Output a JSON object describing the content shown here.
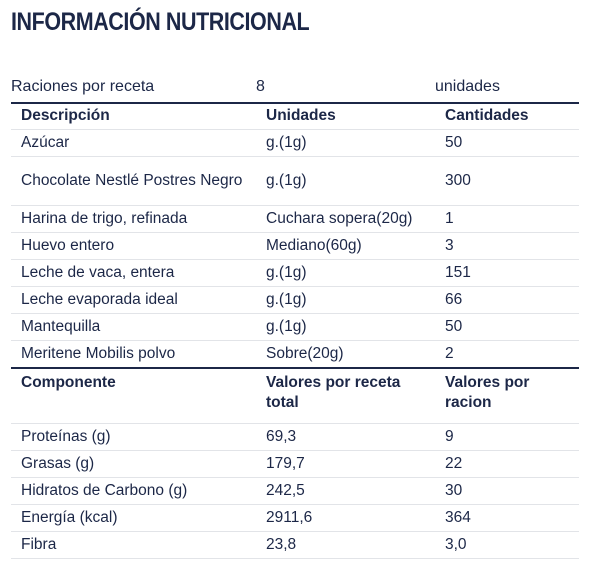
{
  "title": "INFORMACIÓN NUTRICIONAL",
  "servings": {
    "label": "Raciones por receta",
    "value": "8",
    "unit": "unidades"
  },
  "ingredients": {
    "headers": [
      "Descripción",
      "Unidades",
      "Cantidades"
    ],
    "rows": [
      [
        "Azúcar",
        "g.(1g)",
        "50"
      ],
      [
        "Chocolate Nestlé Postres Negro",
        "g.(1g)",
        "300"
      ],
      [
        "Harina de trigo, refinada",
        "Cuchara sopera(20g)",
        "1"
      ],
      [
        "Huevo entero",
        "Mediano(60g)",
        "3"
      ],
      [
        "Leche de vaca, entera",
        "g.(1g)",
        "151"
      ],
      [
        "Leche evaporada ideal",
        "g.(1g)",
        "66"
      ],
      [
        "Mantequilla",
        "g.(1g)",
        "50"
      ],
      [
        "Meritene Mobilis polvo",
        "Sobre(20g)",
        "2"
      ]
    ]
  },
  "components": {
    "headers": [
      "Componente",
      "Valores por receta total",
      "Valores por racion"
    ],
    "rows": [
      [
        "Proteínas (g)",
        "69,3",
        "9"
      ],
      [
        "Grasas (g)",
        "179,7",
        "22"
      ],
      [
        "Hidratos de Carbono (g)",
        "242,5",
        "30"
      ],
      [
        "Energía (kcal)",
        "2911,6",
        "364"
      ],
      [
        "Fibra",
        "23,8",
        "3,0"
      ]
    ]
  }
}
